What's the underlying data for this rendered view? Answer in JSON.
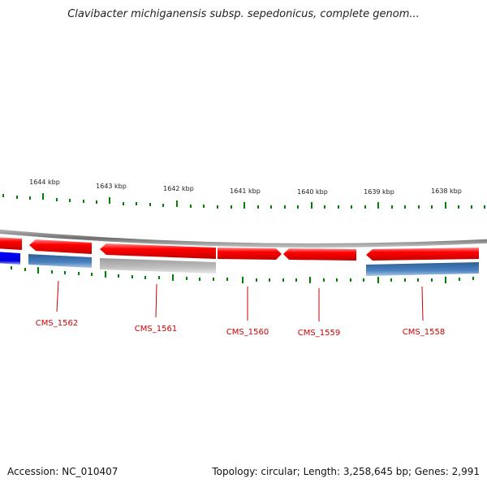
{
  "title": "Clavibacter michiganensis subsp. sepedonicus, complete genom...",
  "footer": {
    "accession": "Accession: NC_010407",
    "stats": "Topology: circular; Length: 3,258,645 bp; Genes: 2,991"
  },
  "colors": {
    "forward_gene": "#ff0000",
    "homolog_blue": "#3a72b4",
    "homolog_gray": "#b4b4b4",
    "bright_blue": "#0000ff",
    "backbone": "#808080",
    "tick": "#008000",
    "label": "#cc0000"
  },
  "scale_labels": [
    "1644 kbp",
    "1643 kbp",
    "1642 kbp",
    "1641 kbp",
    "1640 kbp",
    "1639 kbp",
    "1638 kbp"
  ],
  "genes": [
    {
      "id": "gene-edge",
      "label": ""
    },
    {
      "id": "CMS_1562",
      "label": "CMS_1562"
    },
    {
      "id": "CMS_1561",
      "label": "CMS_1561"
    },
    {
      "id": "CMS_1560",
      "label": "CMS_1560"
    },
    {
      "id": "CMS_1559",
      "label": "CMS_1559"
    },
    {
      "id": "CMS_1558",
      "label": "CMS_1558"
    }
  ],
  "homologs": [
    {
      "id": "homolog-edge",
      "color": "bright_blue"
    },
    {
      "id": "homolog-1562",
      "color": "homolog_blue"
    },
    {
      "id": "homolog-1561",
      "color": "homolog_gray"
    },
    {
      "id": "homolog-1558",
      "color": "homolog_blue"
    }
  ]
}
